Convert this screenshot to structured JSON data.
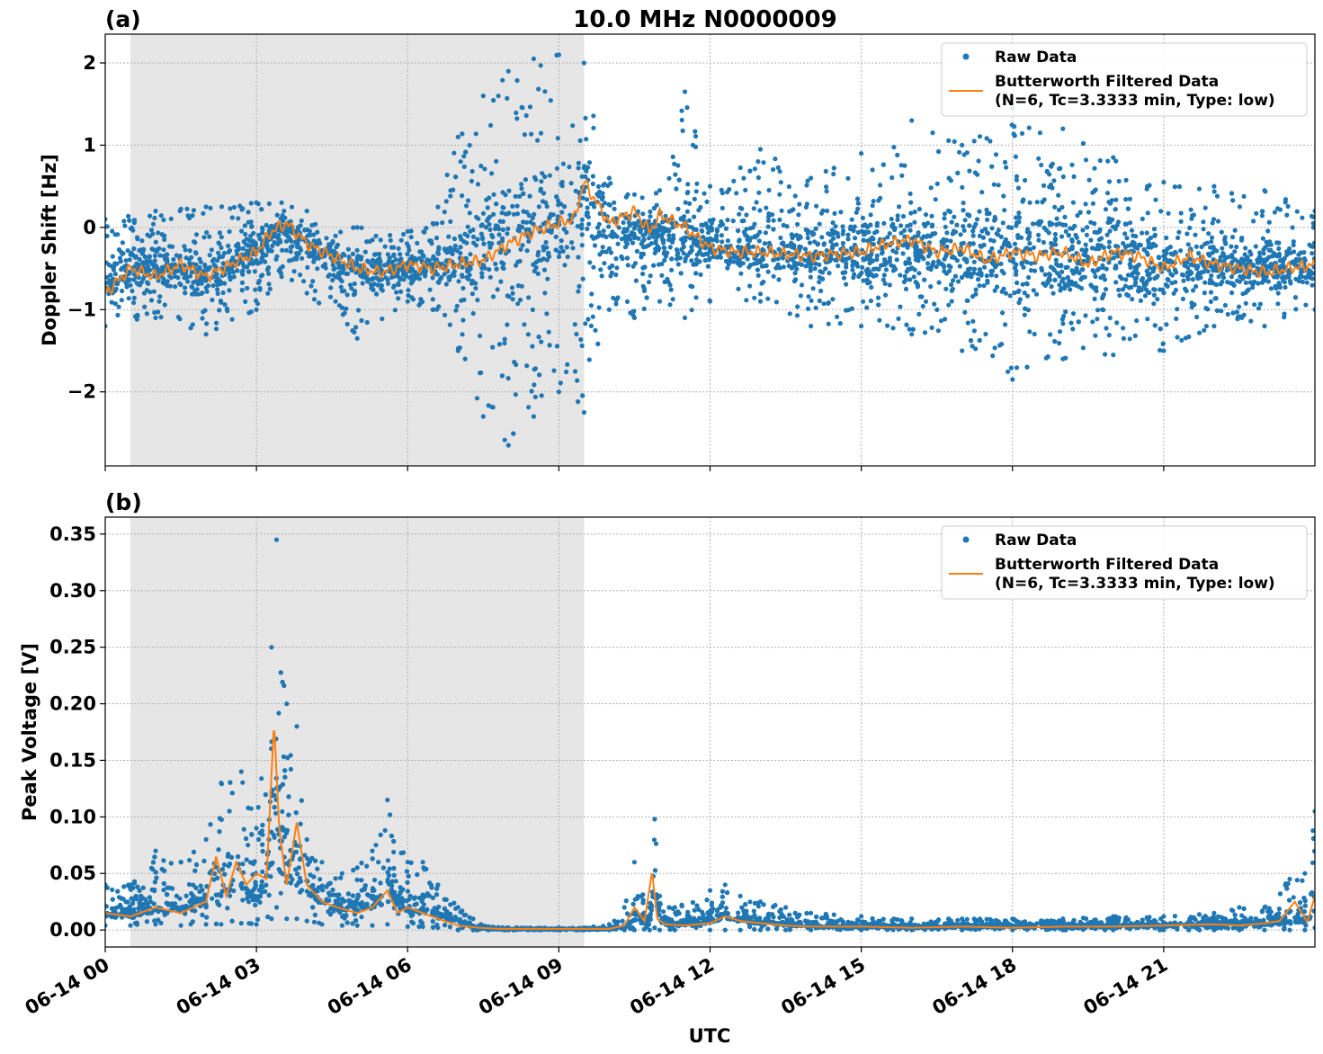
{
  "figure": {
    "title": "10.0 MHz N0000009",
    "xlabel": "UTC",
    "x_tick_labels": [
      "06-14 00",
      "06-14 03",
      "06-14 06",
      "06-14 09",
      "06-14 12",
      "06-14 15",
      "06-14 18",
      "06-14 21"
    ]
  },
  "chart_data": [
    {
      "type": "scatter",
      "panel_label": "(a)",
      "title": "10.0 MHz N0000009",
      "xlabel": "UTC",
      "ylabel": "Doppler Shift [Hz]",
      "x_unit": "hours UTC on 06-14",
      "xlim": [
        0,
        24
      ],
      "ylim": [
        -2.9,
        2.35
      ],
      "y_ticks": [
        -2,
        -1,
        0,
        1,
        2
      ],
      "y_tick_labels": [
        "−2",
        "−1",
        "0",
        "1",
        "2"
      ],
      "grid": true,
      "legend_position": "top-right",
      "shaded_span": [
        0.5,
        9.5
      ],
      "series": [
        {
          "name": "Raw Data",
          "kind": "points",
          "color": "#1f77b4",
          "x": [
            0,
            1,
            2,
            3,
            3.5,
            4,
            5,
            6,
            6.5,
            7,
            7.5,
            8,
            8.5,
            9,
            9.5,
            10,
            10.5,
            11,
            11.5,
            12,
            13,
            14,
            15,
            16,
            17,
            18,
            19,
            20,
            21,
            22,
            23,
            24
          ],
          "y_mean": [
            -0.6,
            -0.5,
            -0.55,
            -0.3,
            0,
            -0.2,
            -0.5,
            -0.5,
            -0.45,
            -0.4,
            -0.2,
            -0.1,
            0,
            0.05,
            0.2,
            0.1,
            0,
            -0.1,
            -0.15,
            -0.25,
            -0.3,
            -0.3,
            -0.3,
            -0.3,
            -0.3,
            -0.35,
            -0.4,
            -0.4,
            -0.45,
            -0.5,
            -0.5,
            -0.5
          ],
          "y_min": [
            -1.2,
            -1.1,
            -1.3,
            -1.0,
            -0.6,
            -0.8,
            -1.35,
            -0.9,
            -1.0,
            -1.5,
            -2.3,
            -2.65,
            -2.3,
            -2.0,
            -2.25,
            -1.0,
            -1.1,
            -0.9,
            -1.1,
            -0.9,
            -0.9,
            -1.2,
            -1.2,
            -1.3,
            -1.5,
            -1.85,
            -1.6,
            -1.55,
            -1.5,
            -1.2,
            -1.2,
            -1.0
          ],
          "y_max": [
            0.1,
            0.2,
            0.25,
            0.3,
            0.3,
            0.2,
            0.0,
            -0.05,
            0.05,
            1.1,
            1.6,
            1.9,
            2.05,
            2.1,
            2.0,
            0.6,
            0.4,
            0.45,
            1.65,
            0.5,
            0.95,
            0.6,
            0.9,
            1.3,
            1.0,
            1.45,
            1.2,
            0.85,
            0.55,
            0.5,
            0.45,
            0.2
          ]
        },
        {
          "name": "Butterworth Filtered Data\n(N=6, Tc=3.3333 min, Type: low)",
          "kind": "line",
          "color": "#ff7f0e",
          "x": [
            0,
            0.5,
            1,
            1.5,
            2,
            2.5,
            3,
            3.3,
            3.6,
            4,
            4.5,
            5,
            5.5,
            6,
            6.5,
            7,
            7.5,
            8,
            8.5,
            9,
            9.3,
            9.5,
            10,
            10.5,
            10.8,
            11,
            11.5,
            12,
            12.5,
            13,
            14,
            15,
            15.5,
            16,
            16.5,
            17,
            17.5,
            18,
            18.5,
            19,
            19.5,
            20,
            20.5,
            21,
            21.5,
            22,
            22.5,
            23,
            23.5,
            24
          ],
          "y": [
            -0.8,
            -0.5,
            -0.6,
            -0.45,
            -0.6,
            -0.45,
            -0.3,
            -0.05,
            0.05,
            -0.2,
            -0.35,
            -0.5,
            -0.55,
            -0.45,
            -0.5,
            -0.45,
            -0.4,
            -0.2,
            -0.05,
            0.05,
            0.1,
            0.55,
            0.05,
            0.2,
            -0.05,
            0.15,
            0.0,
            -0.25,
            -0.3,
            -0.3,
            -0.35,
            -0.3,
            -0.2,
            -0.15,
            -0.3,
            -0.25,
            -0.4,
            -0.3,
            -0.35,
            -0.3,
            -0.45,
            -0.3,
            -0.35,
            -0.5,
            -0.35,
            -0.45,
            -0.5,
            -0.55,
            -0.5,
            -0.45
          ]
        }
      ]
    },
    {
      "type": "scatter",
      "panel_label": "(b)",
      "xlabel": "UTC",
      "ylabel": "Peak Voltage [V]",
      "x_unit": "hours UTC on 06-14",
      "xlim": [
        0,
        24
      ],
      "ylim": [
        -0.015,
        0.365
      ],
      "y_ticks": [
        0,
        0.05,
        0.1,
        0.15,
        0.2,
        0.25,
        0.3,
        0.35
      ],
      "y_tick_labels": [
        "0.00",
        "0.05",
        "0.10",
        "0.15",
        "0.20",
        "0.25",
        "0.30",
        "0.35"
      ],
      "grid": true,
      "legend_position": "top-right",
      "shaded_span": [
        0.5,
        9.5
      ],
      "series": [
        {
          "name": "Raw Data",
          "kind": "points",
          "color": "#1f77b4",
          "x": [
            0,
            0.5,
            1,
            1.5,
            2,
            2.3,
            2.7,
            3,
            3.3,
            3.4,
            3.6,
            3.8,
            4,
            4.3,
            4.7,
            5,
            5.3,
            5.6,
            6,
            6.3,
            6.6,
            7,
            7.3,
            7.6,
            8,
            9,
            9.5,
            10,
            10.3,
            10.5,
            10.8,
            10.9,
            11,
            11.3,
            12,
            12.3,
            12.6,
            13,
            13.5,
            14,
            15,
            16,
            17,
            18,
            19,
            20,
            21,
            22,
            22.5,
            23,
            23.5,
            23.8,
            24
          ],
          "y_mean": [
            0.015,
            0.015,
            0.02,
            0.02,
            0.025,
            0.04,
            0.035,
            0.03,
            0.06,
            0.12,
            0.05,
            0.06,
            0.04,
            0.025,
            0.02,
            0.02,
            0.025,
            0.035,
            0.02,
            0.02,
            0.015,
            0.008,
            0.003,
            0.001,
            0.001,
            0.001,
            0.001,
            0.001,
            0.003,
            0.01,
            0.008,
            0.04,
            0.008,
            0.005,
            0.008,
            0.012,
            0.01,
            0.007,
            0.005,
            0.004,
            0.003,
            0.003,
            0.003,
            0.003,
            0.003,
            0.003,
            0.004,
            0.005,
            0.006,
            0.006,
            0.008,
            0.01,
            0.015
          ],
          "y_min": [
            0.004,
            0.004,
            0.005,
            0.004,
            0.005,
            0.005,
            0.006,
            0.005,
            0.01,
            0.02,
            0.01,
            0.01,
            0.008,
            0.005,
            0.004,
            0.004,
            0.004,
            0.005,
            0.003,
            0.003,
            0.002,
            0.0,
            0.0,
            0.0,
            0.0,
            0.0,
            0.0,
            0.0,
            0.0,
            0.0,
            0.0,
            0.002,
            0.0,
            0.0,
            0.0,
            0.0,
            0.0,
            0.0,
            0.0,
            0.0,
            0.0,
            0.0,
            0.0,
            0.0,
            0.0,
            0.0,
            0.0,
            0.0,
            0.0,
            0.0,
            0.0,
            0.0,
            0.002
          ],
          "y_max": [
            0.04,
            0.04,
            0.07,
            0.06,
            0.08,
            0.13,
            0.14,
            0.09,
            0.25,
            0.345,
            0.2,
            0.18,
            0.08,
            0.06,
            0.05,
            0.055,
            0.07,
            0.115,
            0.06,
            0.06,
            0.04,
            0.02,
            0.01,
            0.003,
            0.002,
            0.002,
            0.002,
            0.005,
            0.02,
            0.06,
            0.02,
            0.098,
            0.03,
            0.02,
            0.035,
            0.04,
            0.03,
            0.025,
            0.02,
            0.015,
            0.012,
            0.01,
            0.01,
            0.01,
            0.01,
            0.012,
            0.012,
            0.015,
            0.02,
            0.02,
            0.045,
            0.05,
            0.105
          ]
        },
        {
          "name": "Butterworth Filtered Data\n(N=6, Tc=3.3333 min, Type: low)",
          "kind": "line",
          "color": "#ff7f0e",
          "x": [
            0,
            0.5,
            1,
            1.5,
            2,
            2.2,
            2.4,
            2.6,
            2.8,
            3,
            3.2,
            3.35,
            3.45,
            3.6,
            3.8,
            4,
            4.3,
            4.6,
            5,
            5.3,
            5.6,
            5.8,
            6,
            6.3,
            6.6,
            7,
            7.4,
            7.8,
            8.5,
            9.5,
            10,
            10.3,
            10.5,
            10.7,
            10.85,
            10.95,
            11.1,
            11.5,
            12,
            12.3,
            12.6,
            13,
            13.5,
            14,
            15,
            16,
            17,
            18,
            19,
            20,
            21,
            22,
            22.5,
            23,
            23.3,
            23.6,
            23.85,
            24
          ],
          "y": [
            0.015,
            0.012,
            0.02,
            0.015,
            0.025,
            0.065,
            0.03,
            0.06,
            0.04,
            0.05,
            0.045,
            0.185,
            0.09,
            0.04,
            0.095,
            0.04,
            0.025,
            0.02,
            0.015,
            0.02,
            0.035,
            0.015,
            0.02,
            0.015,
            0.01,
            0.004,
            0.002,
            0.001,
            0.001,
            0.001,
            0.001,
            0.004,
            0.02,
            0.008,
            0.052,
            0.01,
            0.005,
            0.004,
            0.006,
            0.012,
            0.008,
            0.006,
            0.004,
            0.003,
            0.003,
            0.002,
            0.003,
            0.002,
            0.003,
            0.003,
            0.004,
            0.005,
            0.004,
            0.006,
            0.008,
            0.025,
            0.007,
            0.03
          ]
        }
      ]
    }
  ]
}
